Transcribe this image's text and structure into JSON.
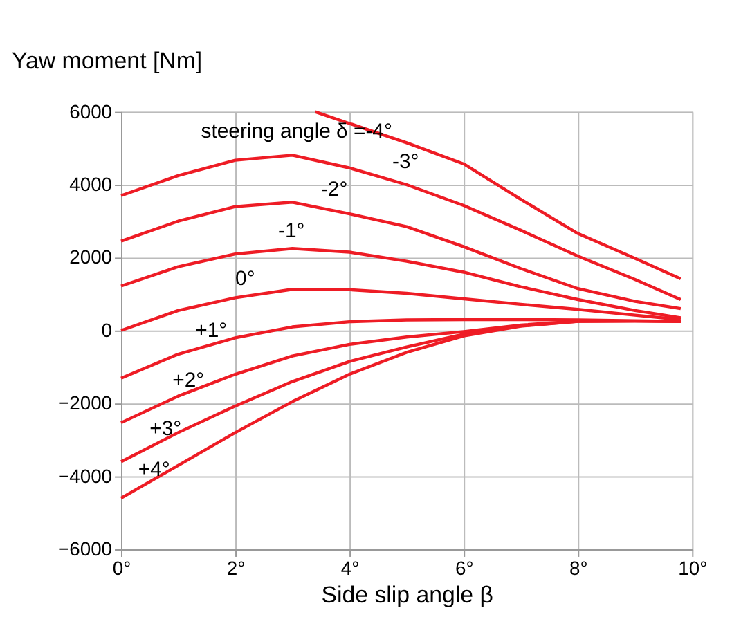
{
  "chart_data": {
    "type": "line",
    "xlabel": "Side slip angle β",
    "ylabel": "Yaw moment [Nm]",
    "xlim": [
      0,
      10
    ],
    "xticks": [
      {
        "value": 0,
        "label": "0°"
      },
      {
        "value": 2,
        "label": "2°"
      },
      {
        "value": 4,
        "label": "4°"
      },
      {
        "value": 6,
        "label": "6°"
      },
      {
        "value": 8,
        "label": "8°"
      },
      {
        "value": 10,
        "label": "10°"
      }
    ],
    "ylim": [
      -6000,
      6000
    ],
    "yticks": [
      -6000,
      -4000,
      -2000,
      0,
      2000,
      4000,
      6000
    ],
    "grid": true,
    "legend": false,
    "marker": "none",
    "line_style": "solid",
    "series": [
      {
        "name": "steering angle δ =-4°",
        "color": "#ee1c25",
        "x": [
          3.4,
          4,
          5,
          6,
          7,
          8,
          9,
          9.8
        ],
        "values": [
          6000,
          5680,
          5150,
          4570,
          3600,
          2660,
          1980,
          1420
        ]
      },
      {
        "name": "-3°",
        "color": "#ee1c25",
        "x": [
          0,
          1,
          2,
          3,
          4,
          5,
          6,
          7,
          8,
          9,
          9.8
        ],
        "values": [
          3700,
          4250,
          4670,
          4810,
          4460,
          4000,
          3430,
          2750,
          2040,
          1400,
          850
        ]
      },
      {
        "name": "-2°",
        "color": "#ee1c25",
        "x": [
          0,
          1,
          2,
          3,
          4,
          5,
          6,
          7,
          8,
          9,
          9.8
        ],
        "values": [
          2450,
          3000,
          3400,
          3520,
          3200,
          2850,
          2300,
          1700,
          1150,
          800,
          600
        ]
      },
      {
        "name": "-1°",
        "color": "#ee1c25",
        "x": [
          0,
          1,
          2,
          3,
          4,
          5,
          6,
          7,
          8,
          9,
          9.8
        ],
        "values": [
          1220,
          1750,
          2100,
          2250,
          2150,
          1900,
          1600,
          1200,
          850,
          550,
          350
        ]
      },
      {
        "name": "0°",
        "color": "#ee1c25",
        "x": [
          0,
          1,
          2,
          3,
          4,
          5,
          6,
          7,
          8,
          9,
          9.8
        ],
        "values": [
          0,
          550,
          900,
          1130,
          1120,
          1020,
          870,
          720,
          580,
          420,
          300
        ]
      },
      {
        "name": "+1°",
        "color": "#ee1c25",
        "x": [
          0,
          1,
          2,
          3,
          4,
          5,
          6,
          7,
          8,
          9,
          9.8
        ],
        "values": [
          -1310,
          -650,
          -200,
          100,
          240,
          290,
          300,
          300,
          290,
          270,
          250
        ]
      },
      {
        "name": "+2°",
        "color": "#ee1c25",
        "x": [
          0,
          1,
          2,
          3,
          4,
          5,
          6,
          7,
          8,
          9,
          9.8
        ],
        "values": [
          -2530,
          -1800,
          -1200,
          -700,
          -380,
          -180,
          -30,
          150,
          260,
          260,
          250
        ]
      },
      {
        "name": "+3°",
        "color": "#ee1c25",
        "x": [
          0,
          1,
          2,
          3,
          4,
          5,
          6,
          7,
          8,
          9,
          9.8
        ],
        "values": [
          -3600,
          -2800,
          -2070,
          -1400,
          -850,
          -450,
          -100,
          130,
          250,
          260,
          250
        ]
      },
      {
        "name": "+4°",
        "color": "#ee1c25",
        "x": [
          0,
          1,
          2,
          3,
          4,
          5,
          6,
          7,
          8,
          9,
          9.8
        ],
        "values": [
          -4600,
          -3700,
          -2800,
          -1950,
          -1200,
          -600,
          -150,
          120,
          250,
          260,
          250
        ]
      }
    ]
  }
}
